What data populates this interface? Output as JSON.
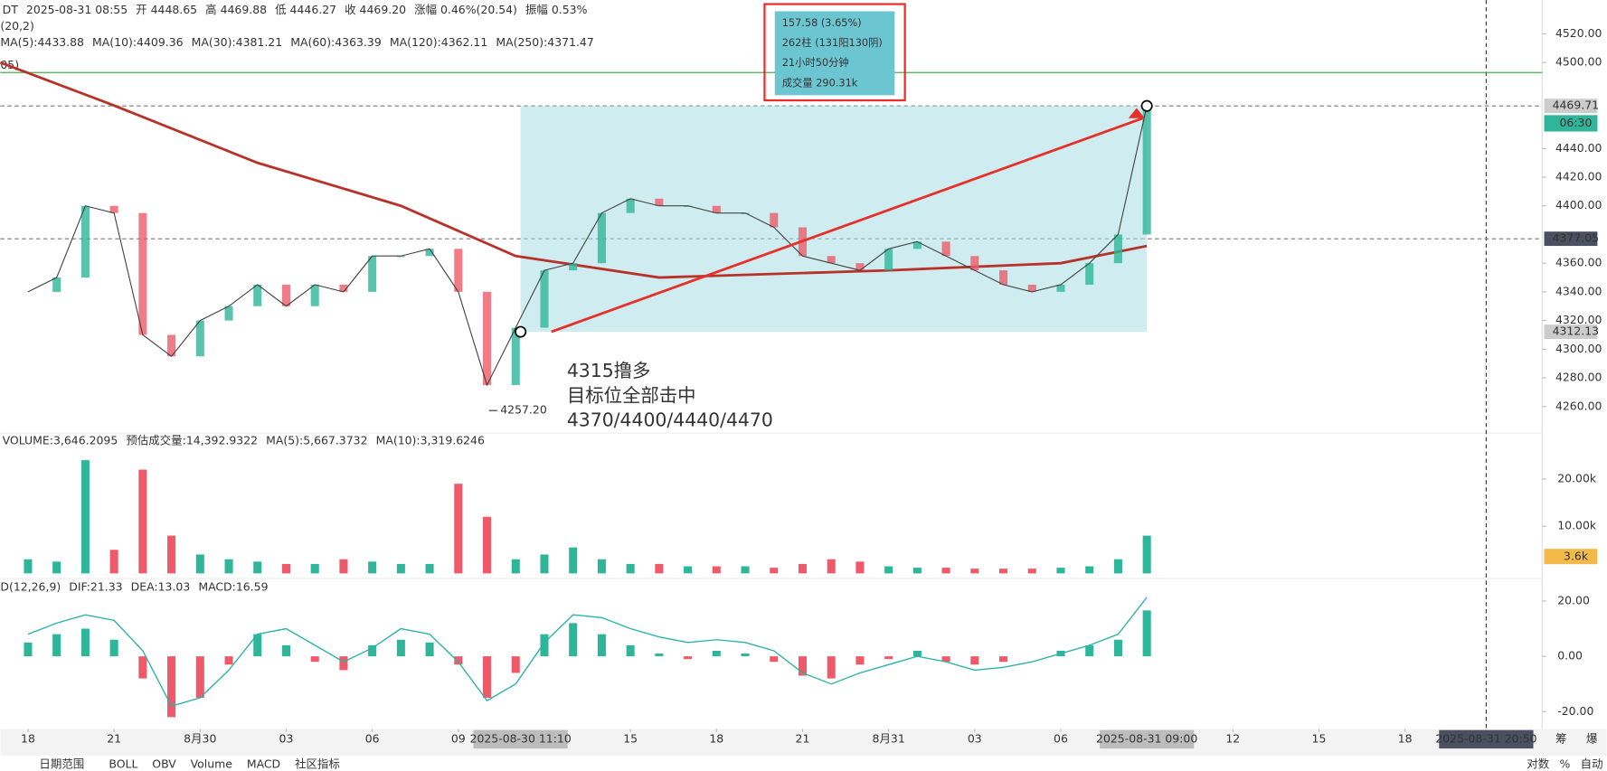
{
  "header": {
    "items": [
      "DT",
      "2025-08-31 08:55",
      "开 4448.65",
      "高 4469.88",
      "低 4446.27",
      "收 4469.20",
      "涨幅 0.46%(20.54)",
      "振幅 0.53%"
    ],
    "ma_legend": [
      {
        "label": "MA(5):4433.88",
        "color": "#1f4e9a"
      },
      {
        "label": "MA(10):4409.36",
        "color": "#7a2a6e"
      },
      {
        "label": "MA(30):4381.21",
        "color": "#e0609e"
      },
      {
        "label": "MA(60):4363.39",
        "color": "#2ab3a6"
      },
      {
        "label": "MA(120):4362.11",
        "color": "#a0522d"
      },
      {
        "label": "MA(250):4371.47",
        "color": "#b8322a"
      }
    ],
    "boll_label": "(20,2)",
    "extra_label": "05)"
  },
  "chart_data": {
    "type": "candlestick-ui",
    "up_color": "#2fb59a",
    "down_color": "#ef5a6a",
    "xlim": [
      -0.964,
      52.6
    ],
    "xticks": [
      {
        "value": 0,
        "label": "18"
      },
      {
        "value": 3,
        "label": "21"
      },
      {
        "value": 6,
        "label": "8月30"
      },
      {
        "value": 9,
        "label": "03"
      },
      {
        "value": 12,
        "label": "06"
      },
      {
        "value": 15,
        "label": "09"
      },
      {
        "value": 21,
        "label": "15"
      },
      {
        "value": 24,
        "label": "18"
      },
      {
        "value": 27,
        "label": "21"
      },
      {
        "value": 30,
        "label": "8月31"
      },
      {
        "value": 33,
        "label": "03"
      },
      {
        "value": 36,
        "label": "06"
      },
      {
        "value": 42,
        "label": "12"
      },
      {
        "value": 45,
        "label": "15"
      },
      {
        "value": 48,
        "label": "18"
      }
    ],
    "x_highlights": [
      {
        "value": 17.17,
        "label": "2025-08-30 11:10"
      },
      {
        "value": 39,
        "label": "2025-08-31 09:00"
      },
      {
        "value": 50.83,
        "label": "2025-08-31 20:50"
      }
    ],
    "price": {
      "ylim": [
        4243.6,
        4543.6
      ],
      "yticks": [
        {
          "value": 4520,
          "label": "4520.00"
        },
        {
          "value": 4500,
          "label": "4500.00"
        },
        {
          "value": 4440,
          "label": "4440.00"
        },
        {
          "value": 4420,
          "label": "4420.00"
        },
        {
          "value": 4400,
          "label": "4400.00"
        },
        {
          "value": 4360,
          "label": "4360.00"
        },
        {
          "value": 4340,
          "label": "4340.00"
        },
        {
          "value": 4320,
          "label": "4320.00"
        },
        {
          "value": 4300,
          "label": "4300.00"
        },
        {
          "value": 4280,
          "label": "4280.00"
        },
        {
          "value": 4260,
          "label": "4260.00"
        }
      ],
      "x": [
        0,
        1,
        2,
        3,
        4,
        5,
        6,
        7,
        8,
        9,
        10,
        11,
        12,
        13,
        14,
        15,
        16,
        17,
        18,
        19,
        20,
        21,
        22,
        23,
        24,
        25,
        26,
        27,
        28,
        29,
        30,
        31,
        32,
        33,
        34,
        35,
        36,
        37,
        38,
        39
      ],
      "series": [
        {
          "name": "close",
          "color": "#2fb59a",
          "values": [
            4340,
            4350,
            4400,
            4395,
            4310,
            4295,
            4320,
            4330,
            4345,
            4330,
            4345,
            4340,
            4365,
            4365,
            4370,
            4340,
            4275,
            4315,
            4355,
            4360,
            4395,
            4405,
            4400,
            4400,
            4395,
            4395,
            4385,
            4365,
            4360,
            4355,
            4370,
            4375,
            4365,
            4355,
            4345,
            4340,
            4345,
            4360,
            4380,
            4469.71
          ]
        },
        {
          "name": "MA(250)",
          "color": "#b8322a",
          "x": [
            -0.964,
            3,
            8,
            13,
            17,
            22,
            30,
            36,
            39
          ],
          "values": [
            4500,
            4470,
            4430,
            4400,
            4365,
            4350,
            4355,
            4360,
            4372
          ]
        }
      ],
      "green_line": 4493,
      "price_tags": [
        {
          "value": 4469.71,
          "label": "4469.71",
          "color": "#555",
          "dashed": true
        },
        {
          "value": 4377.05,
          "label": "4377.05",
          "color": "#555",
          "dashed": true
        },
        {
          "value": 4312.13,
          "label": "4312.13",
          "color": "#555",
          "dashed": false
        }
      ],
      "countdown": "06:30",
      "low": {
        "x": 16,
        "value": 4257.2,
        "label": "4257.20"
      },
      "range_box": {
        "x": [
          17.17,
          39
        ],
        "y": [
          4312.13,
          4469.71
        ],
        "lines": [
          "157.58 (3.65%)",
          "262柱 (131阳130阴)",
          "21小时50分钟",
          "成交量 290.31k"
        ]
      },
      "annotation": [
        "4315撸多",
        "目标位全部击中",
        "4370/4400/4440/4470"
      ]
    },
    "volume": {
      "ylim": [
        0,
        29300
      ],
      "yticks": [
        {
          "value": 20000,
          "label": "20.00k"
        },
        {
          "value": 10000,
          "label": "10.00k"
        }
      ],
      "values": [
        3000,
        2500,
        24000,
        5000,
        22000,
        8000,
        4000,
        3000,
        2500,
        2000,
        2000,
        3000,
        2500,
        2000,
        2000,
        19000,
        12000,
        3000,
        4000,
        5500,
        3000,
        2000,
        2000,
        1500,
        1500,
        1500,
        1200,
        2000,
        3000,
        2500,
        1500,
        1200,
        1200,
        1000,
        1000,
        1000,
        1200,
        1500,
        3000,
        8000
      ],
      "current_label": "3.6k",
      "legend": [
        {
          "label": "VOLUME:3,646.2095",
          "color": "#777"
        },
        {
          "label": "预估成交量:14,392.9322",
          "color": "#777"
        },
        {
          "label": "MA(5):5,667.3732",
          "color": "#2ab3a6"
        },
        {
          "label": "MA(10):3,319.6246",
          "color": "#e0a020"
        }
      ]
    },
    "macd": {
      "ylim": [
        -26.3,
        27.4
      ],
      "yticks": [
        {
          "value": 20,
          "label": "20.00"
        },
        {
          "value": 0,
          "label": "0.00"
        },
        {
          "value": -20,
          "label": "-20.00"
        }
      ],
      "hist": [
        5,
        8,
        10,
        6,
        -8,
        -22,
        -15,
        -3,
        8,
        4,
        -2,
        -5,
        4,
        6,
        5,
        -3,
        -15,
        -6,
        8,
        12,
        8,
        4,
        1,
        -1,
        2,
        1,
        -2,
        -7,
        -8,
        -3,
        -1,
        2,
        -2,
        -3,
        -2,
        0,
        2,
        4,
        6,
        16.59
      ],
      "dif": [
        8,
        12,
        15,
        13,
        2,
        -18,
        -15,
        -5,
        8,
        10,
        4,
        -2,
        3,
        10,
        8,
        -2,
        -16,
        -10,
        5,
        15,
        14,
        10,
        7,
        5,
        6,
        5,
        2,
        -6,
        -10,
        -6,
        -3,
        0,
        -2,
        -5,
        -4,
        -2,
        1,
        4,
        8,
        21.33
      ],
      "dif_color": "#2ab3a6",
      "legend": [
        {
          "label": "D(12,26,9)",
          "color": "#777"
        },
        {
          "label": "DIF:21.33",
          "color": "#2ab3a6"
        },
        {
          "label": "DEA:13.03",
          "color": "#e0a020"
        },
        {
          "label": "MACD:16.59",
          "color": "#2ab3a6"
        }
      ]
    }
  },
  "toolbar": {
    "left": [
      "日期范围",
      "BOLL",
      "OBV",
      "Volume",
      "MACD",
      "社区指标"
    ],
    "right": [
      "对数",
      "%",
      "自动"
    ],
    "corner": [
      "筹",
      "爆"
    ]
  }
}
